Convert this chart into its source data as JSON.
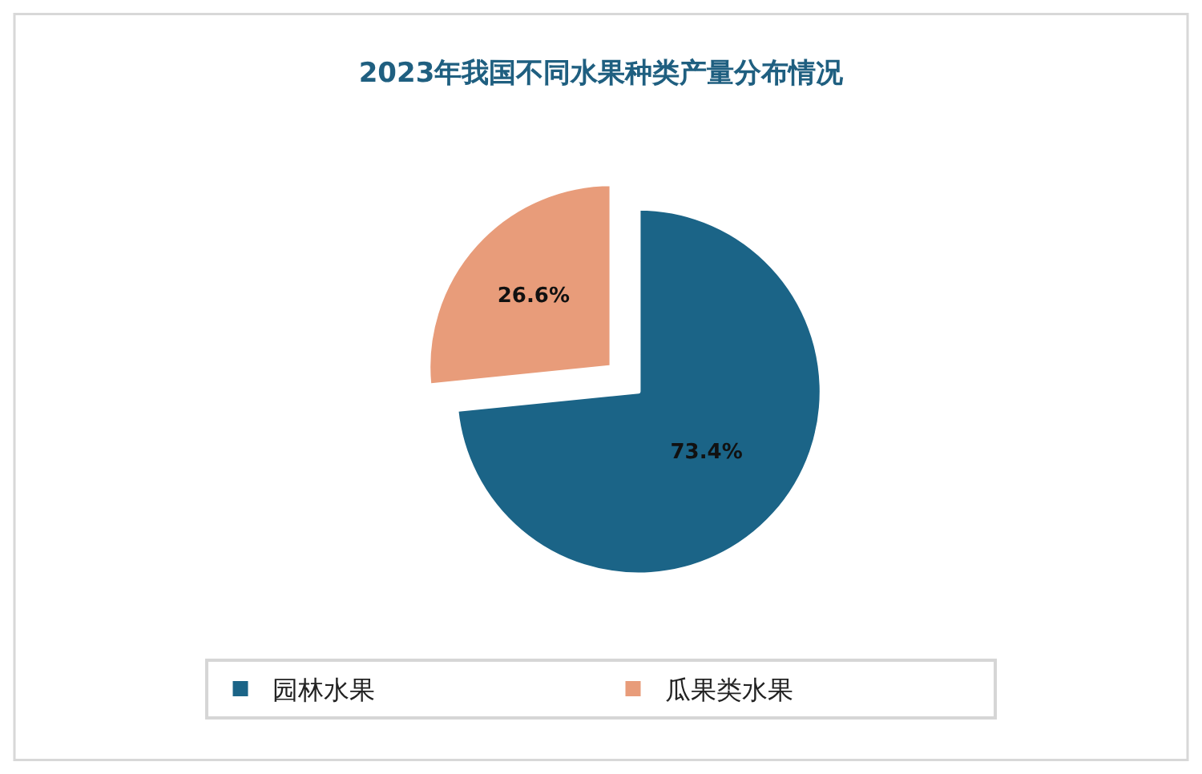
{
  "chart_data": {
    "type": "pie",
    "title": "2023年我国不同水果种类产量分布情况",
    "categories": [
      "园林水果",
      "瓜果类水果"
    ],
    "values": [
      73.4,
      26.6
    ],
    "colors": [
      "#1b6487",
      "#e89c7a"
    ],
    "value_labels": [
      "73.4%",
      "26.6%"
    ],
    "legend": "bottom"
  }
}
